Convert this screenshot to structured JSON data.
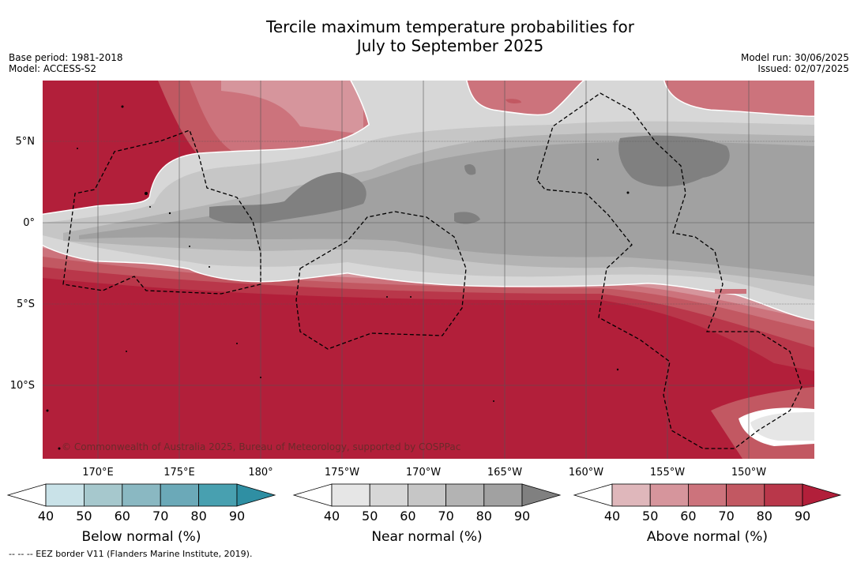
{
  "title": {
    "line1": "Tercile maximum temperature probabilities for",
    "line2": "July to September 2025"
  },
  "meta_left": {
    "base_period": "Base period: 1981-2018",
    "model": "Model: ACCESS-S2"
  },
  "meta_right": {
    "model_run": "Model run: 30/06/2025",
    "issued": "Issued: 02/07/2025"
  },
  "map": {
    "lat_labels": [
      "5°N",
      "0°",
      "5°S",
      "10°S"
    ],
    "lon_labels": [
      "170°E",
      "175°E",
      "180°",
      "175°W",
      "170°W",
      "165°W",
      "160°W",
      "155°W",
      "150°W"
    ],
    "copyright": "© Commonwealth of Australia 2025, Bureau of Meteorology, supported by COSPPac"
  },
  "colorbars": [
    {
      "title": "Below normal (%)",
      "ticks": [
        "40",
        "50",
        "60",
        "70",
        "80",
        "90"
      ],
      "colors": [
        "#ffffff",
        "#c9e2e8",
        "#a6c8cd",
        "#8ab8c2",
        "#6ba9b8",
        "#48a0b0",
        "#2f8fa3"
      ]
    },
    {
      "title": "Near normal (%)",
      "ticks": [
        "40",
        "50",
        "60",
        "70",
        "80",
        "90"
      ],
      "colors": [
        "#ffffff",
        "#e6e6e6",
        "#d7d7d7",
        "#c6c6c6",
        "#b3b3b3",
        "#a1a1a1",
        "#808080"
      ]
    },
    {
      "title": "Above normal (%)",
      "ticks": [
        "40",
        "50",
        "60",
        "70",
        "80",
        "90"
      ],
      "colors": [
        "#ffffff",
        "#dfb7bb",
        "#d6959c",
        "#cc737c",
        "#c25862",
        "#b9374a",
        "#b21f3a"
      ]
    }
  ],
  "footer": "--  --  -- EEZ border V11 (Flanders Marine Institute, 2019)."
}
